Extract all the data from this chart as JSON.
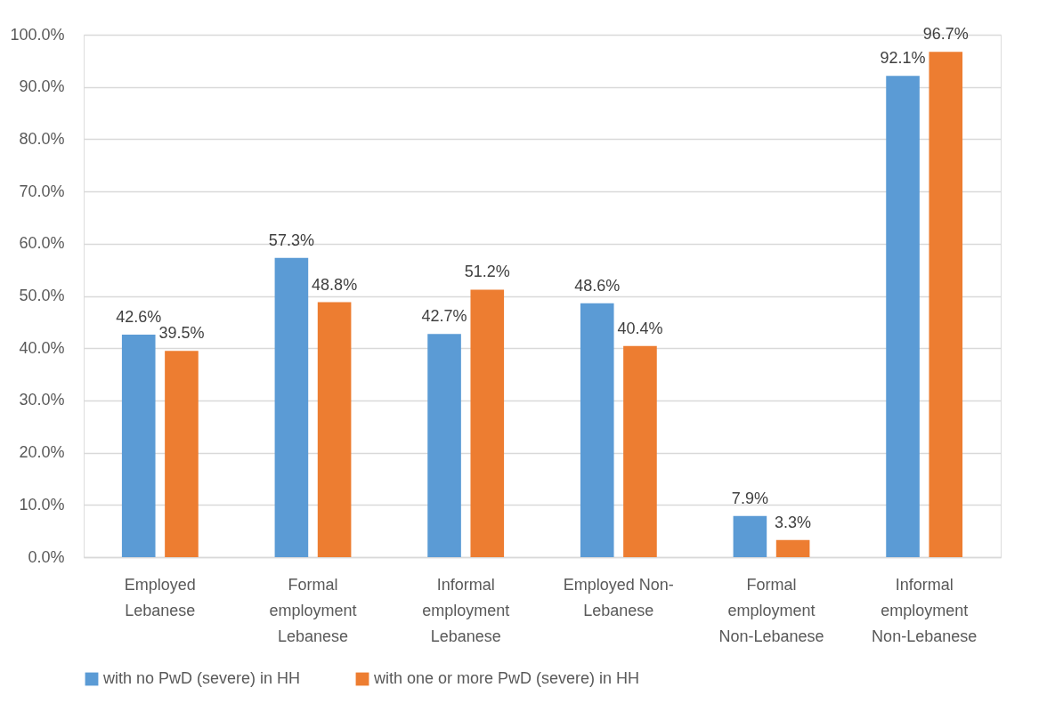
{
  "chart_data": {
    "type": "bar",
    "categories": [
      "Employed Lebanese",
      "Formal employment Lebanese",
      "Informal employment Lebanese",
      "Employed  Non-Lebanese",
      "Formal employment Non-Lebanese",
      "Informal employment Non-Lebanese"
    ],
    "series": [
      {
        "name": "with no PwD (severe) in HH",
        "color": "#5b9bd5",
        "values": [
          42.6,
          57.3,
          42.7,
          48.6,
          7.9,
          92.1
        ],
        "value_labels": [
          "42.6%",
          "57.3%",
          "42.7%",
          "48.6%",
          "7.9%",
          "92.1%"
        ]
      },
      {
        "name": "with one or more PwD (severe) in HH",
        "color": "#ed7d31",
        "values": [
          39.5,
          48.8,
          51.2,
          40.4,
          3.3,
          96.7
        ],
        "value_labels": [
          "39.5%",
          "48.8%",
          "51.2%",
          "40.4%",
          "3.3%",
          "96.7%"
        ]
      }
    ],
    "ylim": [
      0,
      100
    ],
    "yticks": [
      {
        "value": 0,
        "label": "0.0%"
      },
      {
        "value": 10,
        "label": "10.0%"
      },
      {
        "value": 20,
        "label": "20.0%"
      },
      {
        "value": 30,
        "label": "30.0%"
      },
      {
        "value": 40,
        "label": "40.0%"
      },
      {
        "value": 50,
        "label": "50.0%"
      },
      {
        "value": 60,
        "label": "60.0%"
      },
      {
        "value": 70,
        "label": "70.0%"
      },
      {
        "value": 80,
        "label": "80.0%"
      },
      {
        "value": 90,
        "label": "90.0%"
      },
      {
        "value": 100,
        "label": "100.0%"
      }
    ],
    "grid": "y",
    "legend": "bottom"
  }
}
